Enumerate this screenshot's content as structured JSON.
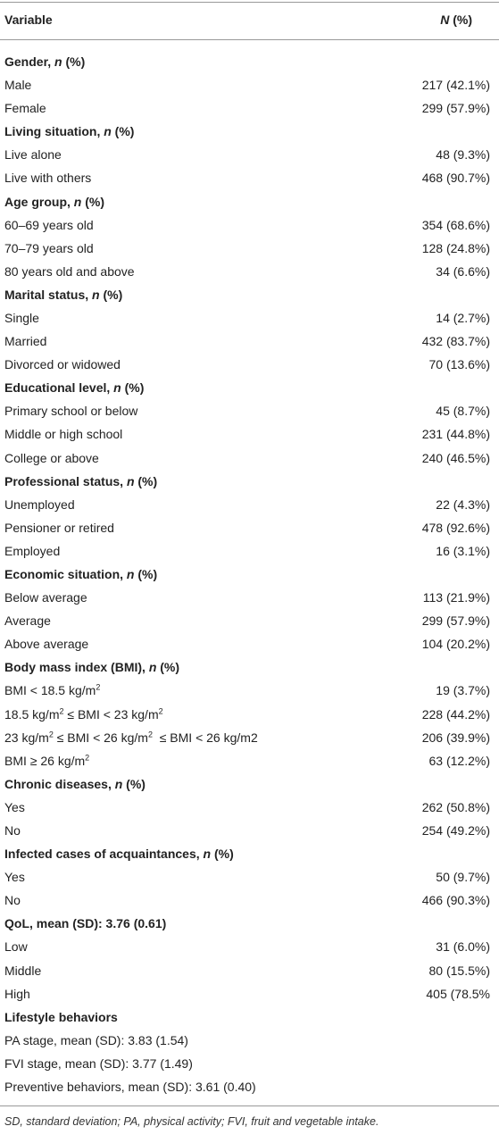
{
  "table": {
    "header": [
      [
        {
          "text": "Variable"
        }
      ],
      [
        {
          "text": "N",
          "italic": true
        },
        {
          "text": " (%)"
        }
      ]
    ],
    "rows": [
      {
        "heading": true,
        "label": [
          {
            "text": "Gender, "
          },
          {
            "text": "n",
            "italic": true
          },
          {
            "text": " (%)"
          }
        ]
      },
      {
        "label": [
          {
            "text": "Male"
          }
        ],
        "value": "217 (42.1%)"
      },
      {
        "label": [
          {
            "text": "Female"
          }
        ],
        "value": "299 (57.9%)"
      },
      {
        "heading": true,
        "label": [
          {
            "text": "Living situation, "
          },
          {
            "text": "n",
            "italic": true
          },
          {
            "text": " (%)"
          }
        ]
      },
      {
        "label": [
          {
            "text": "Live alone"
          }
        ],
        "value": "48 (9.3%)"
      },
      {
        "label": [
          {
            "text": "Live with others"
          }
        ],
        "value": "468 (90.7%)"
      },
      {
        "heading": true,
        "label": [
          {
            "text": "Age group, "
          },
          {
            "text": "n",
            "italic": true
          },
          {
            "text": " (%)"
          }
        ]
      },
      {
        "label": [
          {
            "text": "60–69 years old"
          }
        ],
        "value": "354 (68.6%)"
      },
      {
        "label": [
          {
            "text": "70–79 years old"
          }
        ],
        "value": "128 (24.8%)"
      },
      {
        "label": [
          {
            "text": "80 years old and above"
          }
        ],
        "value": "34 (6.6%)"
      },
      {
        "heading": true,
        "label": [
          {
            "text": "Marital status, "
          },
          {
            "text": "n",
            "italic": true
          },
          {
            "text": " (%)"
          }
        ]
      },
      {
        "label": [
          {
            "text": "Single"
          }
        ],
        "value": "14 (2.7%)"
      },
      {
        "label": [
          {
            "text": "Married"
          }
        ],
        "value": "432 (83.7%)"
      },
      {
        "label": [
          {
            "text": "Divorced or widowed"
          }
        ],
        "value": "70 (13.6%)"
      },
      {
        "heading": true,
        "label": [
          {
            "text": "Educational level, "
          },
          {
            "text": "n",
            "italic": true
          },
          {
            "text": " (%)"
          }
        ]
      },
      {
        "label": [
          {
            "text": "Primary school or below"
          }
        ],
        "value": "45 (8.7%)"
      },
      {
        "label": [
          {
            "text": "Middle or high school"
          }
        ],
        "value": "231 (44.8%)"
      },
      {
        "label": [
          {
            "text": "College or above"
          }
        ],
        "value": "240 (46.5%)"
      },
      {
        "heading": true,
        "label": [
          {
            "text": "Professional status, "
          },
          {
            "text": "n",
            "italic": true
          },
          {
            "text": " (%)"
          }
        ]
      },
      {
        "label": [
          {
            "text": "Unemployed"
          }
        ],
        "value": "22 (4.3%)"
      },
      {
        "label": [
          {
            "text": "Pensioner or retired"
          }
        ],
        "value": "478 (92.6%)"
      },
      {
        "label": [
          {
            "text": "Employed"
          }
        ],
        "value": "16 (3.1%)"
      },
      {
        "heading": true,
        "label": [
          {
            "text": "Economic situation, "
          },
          {
            "text": "n",
            "italic": true
          },
          {
            "text": " (%)"
          }
        ]
      },
      {
        "label": [
          {
            "text": "Below average"
          }
        ],
        "value": "113 (21.9%)"
      },
      {
        "label": [
          {
            "text": "Average"
          }
        ],
        "value": "299 (57.9%)"
      },
      {
        "label": [
          {
            "text": "Above average"
          }
        ],
        "value": "104 (20.2%)"
      },
      {
        "heading": true,
        "label": [
          {
            "text": "Body mass index (BMI), "
          },
          {
            "text": "n",
            "italic": true
          },
          {
            "text": " (%)"
          }
        ]
      },
      {
        "label": [
          {
            "text": "BMI < 18.5 kg/m"
          },
          {
            "text": "2",
            "sup": true
          }
        ],
        "value": "19 (3.7%)"
      },
      {
        "label": [
          {
            "text": "18.5 kg/m"
          },
          {
            "text": "2",
            "sup": true
          },
          {
            "text": " ≤ BMI < 23 kg/m"
          },
          {
            "text": "2",
            "sup": true
          }
        ],
        "value": "228 (44.2%)"
      },
      {
        "label": [
          {
            "text": "23 kg/m"
          },
          {
            "text": "2",
            "sup": true
          },
          {
            "text": " ≤ BMI < 26 kg/m"
          },
          {
            "text": "2",
            "sup": true
          },
          {
            "text": "  ≤ BMI < 26 kg/m2"
          }
        ],
        "value": "206 (39.9%)"
      },
      {
        "label": [
          {
            "text": "BMI ≥ 26 kg/m"
          },
          {
            "text": "2",
            "sup": true
          }
        ],
        "value": "63 (12.2%)"
      },
      {
        "heading": true,
        "label": [
          {
            "text": "Chronic diseases, "
          },
          {
            "text": "n",
            "italic": true
          },
          {
            "text": " (%)"
          }
        ]
      },
      {
        "label": [
          {
            "text": "Yes"
          }
        ],
        "value": "262 (50.8%)"
      },
      {
        "label": [
          {
            "text": "No"
          }
        ],
        "value": "254 (49.2%)"
      },
      {
        "heading": true,
        "label": [
          {
            "text": "Infected cases of acquaintances, "
          },
          {
            "text": "n",
            "italic": true
          },
          {
            "text": " (%)"
          }
        ]
      },
      {
        "label": [
          {
            "text": "Yes"
          }
        ],
        "value": "50 (9.7%)"
      },
      {
        "label": [
          {
            "text": "No"
          }
        ],
        "value": "466 (90.3%)"
      },
      {
        "heading": true,
        "label": [
          {
            "text": "QoL, mean (SD): 3.76 (0.61)"
          }
        ]
      },
      {
        "label": [
          {
            "text": "Low"
          }
        ],
        "value": "31 (6.0%)"
      },
      {
        "label": [
          {
            "text": "Middle"
          }
        ],
        "value": "80 (15.5%)"
      },
      {
        "label": [
          {
            "text": "High"
          }
        ],
        "value": "405 (78.5%"
      },
      {
        "heading": true,
        "label": [
          {
            "text": "Lifestyle behaviors"
          }
        ]
      },
      {
        "label": [
          {
            "text": "PA stage, mean (SD): 3.83 (1.54)"
          }
        ]
      },
      {
        "label": [
          {
            "text": "FVI stage, mean (SD): 3.77 (1.49)"
          }
        ]
      },
      {
        "label": [
          {
            "text": "Preventive behaviors, mean (SD): 3.61 (0.40)"
          }
        ]
      }
    ],
    "footnote": "SD, standard deviation; PA, physical activity; FVI, fruit and vegetable intake."
  }
}
